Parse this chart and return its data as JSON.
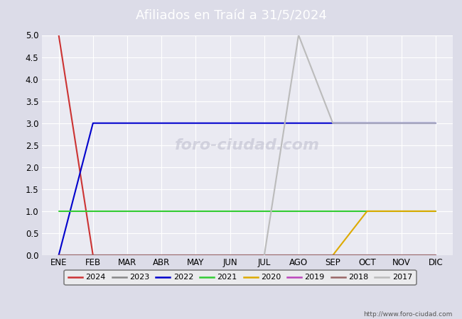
{
  "title": "Afiliados en Traíd a 31/5/2024",
  "title_color": "#ffffff",
  "title_bg_color": "#4a6fba",
  "background_color": "#dcdce8",
  "plot_bg_color": "#eaeaf2",
  "ylim": [
    0.0,
    5.0
  ],
  "yticks": [
    0.0,
    0.5,
    1.0,
    1.5,
    2.0,
    2.5,
    3.0,
    3.5,
    4.0,
    4.5,
    5.0
  ],
  "months": [
    "ENE",
    "FEB",
    "MAR",
    "ABR",
    "MAY",
    "JUN",
    "JUL",
    "AGO",
    "SEP",
    "OCT",
    "NOV",
    "DIC"
  ],
  "url": "http://www.foro-ciudad.com",
  "series": [
    {
      "label": "2024",
      "color": "#cc3333",
      "data": [
        5.0,
        0.0,
        null,
        null,
        null,
        null,
        null,
        null,
        null,
        null,
        null,
        null
      ]
    },
    {
      "label": "2023",
      "color": "#888888",
      "data": [
        0.0,
        0.0,
        0.0,
        0.0,
        0.0,
        0.0,
        0.0,
        0.0,
        0.0,
        0.0,
        0.0,
        0.0
      ]
    },
    {
      "label": "2022",
      "color": "#0000cc",
      "data": [
        0.0,
        3.0,
        3.0,
        3.0,
        3.0,
        3.0,
        3.0,
        3.0,
        3.0,
        3.0,
        3.0,
        3.0
      ]
    },
    {
      "label": "2021",
      "color": "#33cc33",
      "data": [
        1.0,
        1.0,
        1.0,
        1.0,
        1.0,
        1.0,
        1.0,
        1.0,
        1.0,
        1.0,
        1.0,
        1.0
      ]
    },
    {
      "label": "2020",
      "color": "#ddaa00",
      "data": [
        null,
        null,
        null,
        null,
        null,
        null,
        null,
        null,
        0.0,
        1.0,
        1.0,
        1.0
      ]
    },
    {
      "label": "2019",
      "color": "#bb44bb",
      "data": [
        0.0,
        0.0,
        0.0,
        0.0,
        0.0,
        0.0,
        0.0,
        0.0,
        0.0,
        0.0,
        0.0,
        0.0
      ]
    },
    {
      "label": "2018",
      "color": "#996666",
      "data": [
        0.0,
        0.0,
        0.0,
        0.0,
        0.0,
        0.0,
        0.0,
        0.0,
        0.0,
        0.0,
        0.0,
        0.0
      ]
    },
    {
      "label": "2017",
      "color": "#bbbbbb",
      "data": [
        null,
        null,
        null,
        null,
        null,
        null,
        0.0,
        5.0,
        3.0,
        3.0,
        3.0,
        3.0
      ]
    }
  ]
}
